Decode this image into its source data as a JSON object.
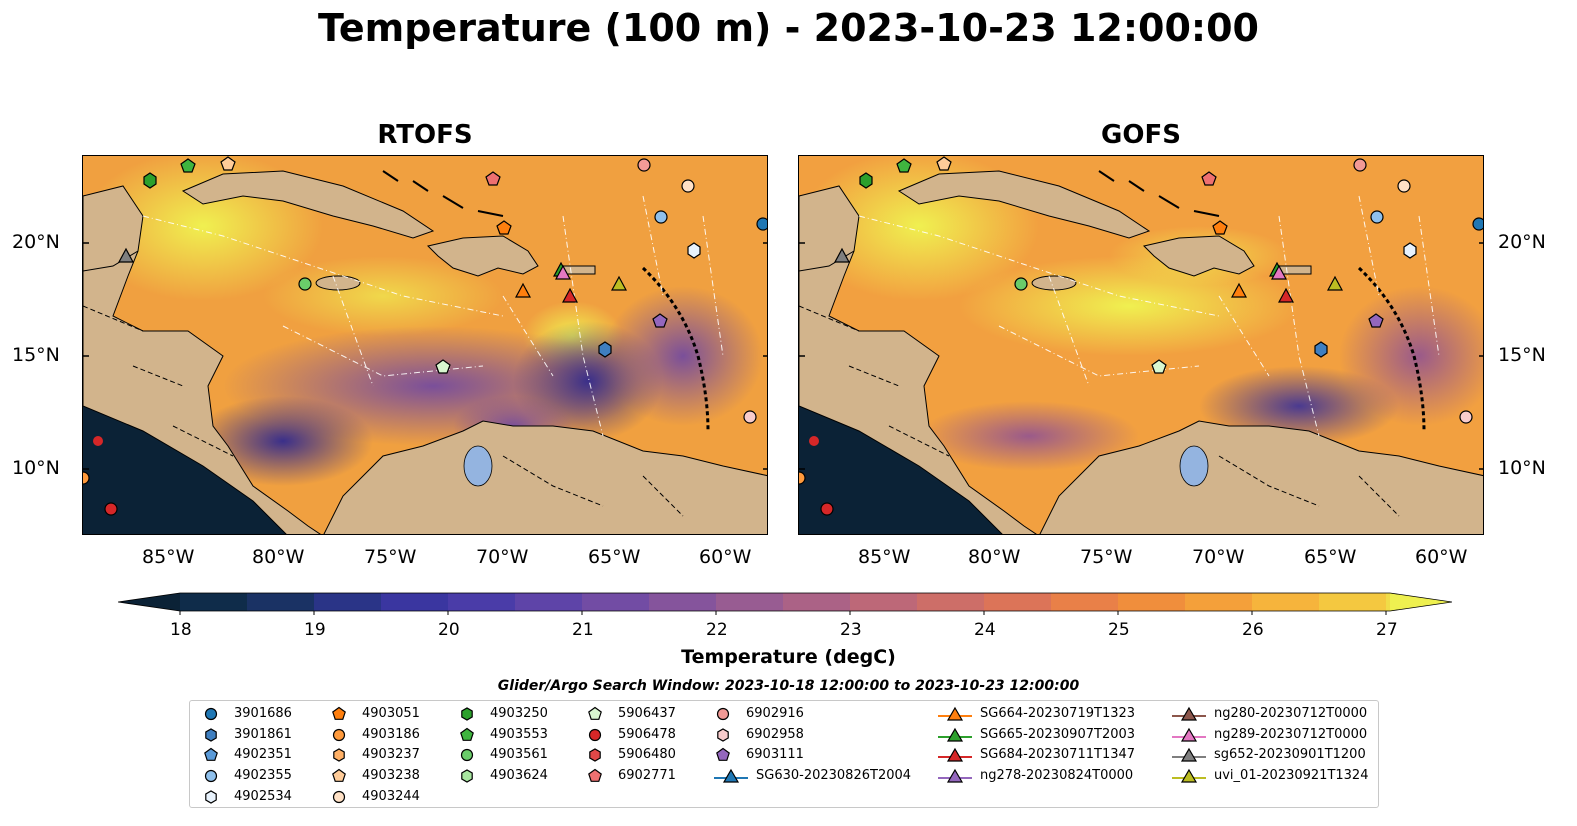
{
  "title": "Temperature (100 m) - 2023-10-23 12:00:00",
  "panels": [
    {
      "title": "RTOFS"
    },
    {
      "title": "GOFS"
    }
  ],
  "axes": {
    "lat_ticks": [
      "20°N",
      "15°N",
      "10°N"
    ],
    "lon_ticks": [
      "85°W",
      "80°W",
      "75°W",
      "70°W",
      "65°W",
      "60°W"
    ]
  },
  "colorbar": {
    "label": "Temperature (degC)",
    "ticks": [
      "18",
      "19",
      "20",
      "21",
      "22",
      "23",
      "24",
      "25",
      "26",
      "27"
    ],
    "range": [
      17.5,
      27.5
    ],
    "extend": "both",
    "colormap": "thermal"
  },
  "legend": {
    "title": "Glider/Argo Search Window: 2023-10-18 12:00:00 to 2023-10-23 12:00:00",
    "columns": [
      [
        {
          "label": "3901686",
          "marker": "circle",
          "color": "#1f77b4"
        },
        {
          "label": "3901861",
          "marker": "hexagon",
          "color": "#3f7fc0"
        },
        {
          "label": "4902351",
          "marker": "pentagon",
          "color": "#5a9ad8"
        },
        {
          "label": "4902355",
          "marker": "circle",
          "color": "#8fc0ec"
        },
        {
          "label": "4902534",
          "marker": "hexagon",
          "color": "#e8f2fc"
        }
      ],
      [
        {
          "label": "4903051",
          "marker": "pentagon",
          "color": "#ff7f0e"
        },
        {
          "label": "4903186",
          "marker": "circle",
          "color": "#ff9a3c"
        },
        {
          "label": "4903237",
          "marker": "hexagon",
          "color": "#ffb066"
        },
        {
          "label": "4903238",
          "marker": "pentagon",
          "color": "#ffcc99"
        },
        {
          "label": "4903244",
          "marker": "circle",
          "color": "#ffe1c6"
        }
      ],
      [
        {
          "label": "4903250",
          "marker": "hexagon",
          "color": "#2ca02c"
        },
        {
          "label": "4903553",
          "marker": "pentagon",
          "color": "#3fb53f"
        },
        {
          "label": "4903561",
          "marker": "circle",
          "color": "#6acc6a"
        },
        {
          "label": "4903624",
          "marker": "hexagon",
          "color": "#a8e6a0"
        }
      ],
      [
        {
          "label": "5906437",
          "marker": "pentagon",
          "color": "#d9f7d0"
        },
        {
          "label": "5906478",
          "marker": "circle",
          "color": "#d62728"
        },
        {
          "label": "5906480",
          "marker": "hexagon",
          "color": "#e04848"
        },
        {
          "label": "6902771",
          "marker": "pentagon",
          "color": "#ee7070"
        }
      ],
      [
        {
          "label": "6902916",
          "marker": "circle",
          "color": "#f29a96"
        },
        {
          "label": "6902958",
          "marker": "hexagon",
          "color": "#f8cccc"
        },
        {
          "label": "6903111",
          "marker": "pentagon",
          "color": "#9467bd"
        },
        {
          "label": "SG630-20230826T2004",
          "marker": "triangle-line",
          "color": "#1f77b4"
        }
      ],
      [
        {
          "label": "SG664-20230719T1323",
          "marker": "triangle-line",
          "color": "#ff7f0e"
        },
        {
          "label": "SG665-20230907T2003",
          "marker": "triangle-line",
          "color": "#2ca02c"
        },
        {
          "label": "SG684-20230711T1347",
          "marker": "triangle-line",
          "color": "#d62728"
        },
        {
          "label": "ng278-20230824T0000",
          "marker": "triangle-line",
          "color": "#9467bd"
        }
      ],
      [
        {
          "label": "ng280-20230712T0000",
          "marker": "triangle-line",
          "color": "#8c564b"
        },
        {
          "label": "ng289-20230712T0000",
          "marker": "triangle-line",
          "color": "#e377c2"
        },
        {
          "label": "sg652-20230901T1200",
          "marker": "triangle-line",
          "color": "#7f7f7f"
        },
        {
          "label": "uvi_01-20230921T1324",
          "marker": "triangle-line",
          "color": "#bcbd22"
        }
      ]
    ]
  },
  "map_colors": {
    "land": "#d2b48c",
    "shelf_water": "#94b4e0",
    "pacific": "#0b2236"
  }
}
